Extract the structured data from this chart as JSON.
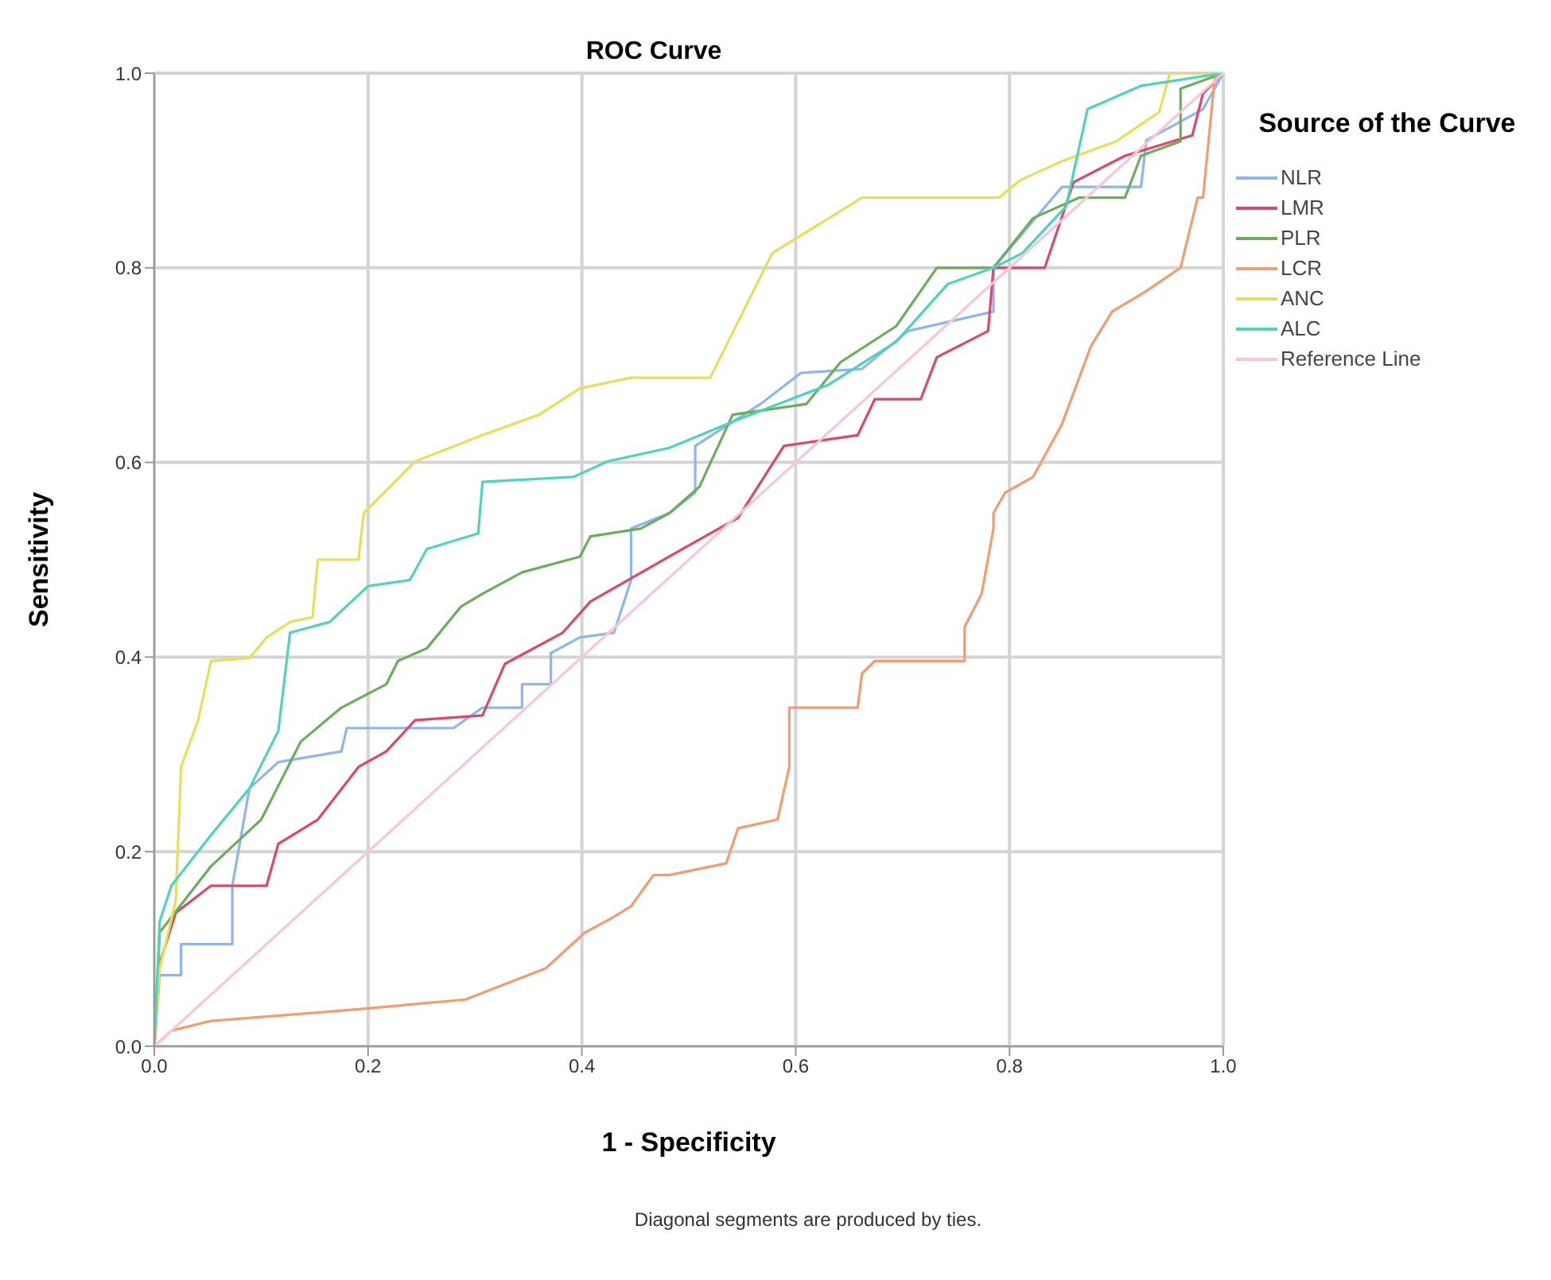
{
  "chart_data": {
    "type": "line",
    "title": "ROC Curve",
    "xlabel": "1 - Specificity",
    "ylabel": "Sensitivity",
    "legend_title": "Source of the Curve",
    "legend": "right",
    "grid": true,
    "marker": "none",
    "line_style": "solid",
    "xlim": [
      0,
      1
    ],
    "ylim": [
      0,
      1
    ],
    "xticks": [
      {
        "value": 0,
        "label": "0.0"
      },
      0.2,
      0.4,
      0.6,
      0.8,
      {
        "value": 1,
        "label": "1.0"
      }
    ],
    "yticks": [
      {
        "value": 0,
        "label": "0.0"
      },
      0.2,
      0.4,
      0.6,
      0.8,
      {
        "value": 1,
        "label": "1.0"
      }
    ],
    "annotations": [
      "Diagonal segments are produced by ties."
    ],
    "series": [
      {
        "name": "NLR",
        "color": "#8db6ee",
        "x": [
          0,
          0.005,
          0.025,
          0.025,
          0.073,
          0.073,
          0.089,
          0.116,
          0.175,
          0.18,
          0.28,
          0.307,
          0.344,
          0.344,
          0.371,
          0.371,
          0.398,
          0.43,
          0.446,
          0.446,
          0.482,
          0.506,
          0.506,
          0.567,
          0.605,
          0.662,
          0.705,
          0.785,
          0.785,
          0.849,
          0.923,
          0.928,
          0.981,
          1
        ],
        "values": [
          0,
          0.073,
          0.073,
          0.105,
          0.105,
          0.165,
          0.265,
          0.292,
          0.303,
          0.327,
          0.327,
          0.348,
          0.348,
          0.372,
          0.372,
          0.404,
          0.42,
          0.425,
          0.479,
          0.532,
          0.548,
          0.569,
          0.617,
          0.66,
          0.692,
          0.696,
          0.735,
          0.755,
          0.8,
          0.883,
          0.883,
          0.931,
          0.963,
          1
        ]
      },
      {
        "name": "LMR",
        "color": "#e0456a",
        "x": [
          0,
          0.005,
          0.02,
          0.053,
          0.105,
          0.116,
          0.153,
          0.191,
          0.217,
          0.244,
          0.307,
          0.328,
          0.382,
          0.408,
          0.494,
          0.546,
          0.589,
          0.658,
          0.674,
          0.717,
          0.732,
          0.78,
          0.785,
          0.833,
          0.86,
          0.908,
          0.971,
          0.981,
          1
        ],
        "values": [
          0,
          0.085,
          0.137,
          0.165,
          0.165,
          0.208,
          0.233,
          0.287,
          0.303,
          0.335,
          0.34,
          0.393,
          0.425,
          0.457,
          0.511,
          0.543,
          0.617,
          0.628,
          0.665,
          0.665,
          0.708,
          0.735,
          0.8,
          0.8,
          0.888,
          0.915,
          0.936,
          0.979,
          1
        ]
      },
      {
        "name": "PLR",
        "color": "#6aae5a",
        "x": [
          0,
          0.005,
          0.053,
          0.1,
          0.137,
          0.175,
          0.217,
          0.228,
          0.255,
          0.287,
          0.307,
          0.344,
          0.398,
          0.408,
          0.455,
          0.482,
          0.51,
          0.541,
          0.61,
          0.642,
          0.694,
          0.732,
          0.785,
          0.822,
          0.865,
          0.908,
          0.923,
          0.96,
          0.96,
          1
        ],
        "values": [
          0,
          0.117,
          0.185,
          0.233,
          0.313,
          0.348,
          0.372,
          0.396,
          0.409,
          0.452,
          0.465,
          0.487,
          0.503,
          0.524,
          0.532,
          0.548,
          0.575,
          0.649,
          0.66,
          0.703,
          0.74,
          0.8,
          0.8,
          0.851,
          0.872,
          0.872,
          0.915,
          0.93,
          0.984,
          1
        ]
      },
      {
        "name": "LCR",
        "color": "#f79a6e",
        "x": [
          0,
          0.016,
          0.053,
          0.18,
          0.291,
          0.366,
          0.382,
          0.403,
          0.43,
          0.446,
          0.467,
          0.482,
          0.535,
          0.546,
          0.583,
          0.594,
          0.594,
          0.658,
          0.662,
          0.674,
          0.758,
          0.758,
          0.774,
          0.785,
          0.785,
          0.796,
          0.822,
          0.833,
          0.849,
          0.876,
          0.896,
          0.928,
          0.96,
          0.976,
          0.981,
          0.992,
          1
        ],
        "values": [
          0,
          0.016,
          0.026,
          0.037,
          0.048,
          0.08,
          0.096,
          0.117,
          0.133,
          0.144,
          0.176,
          0.176,
          0.188,
          0.224,
          0.233,
          0.287,
          0.348,
          0.348,
          0.383,
          0.396,
          0.396,
          0.431,
          0.465,
          0.532,
          0.548,
          0.569,
          0.585,
          0.607,
          0.639,
          0.719,
          0.755,
          0.776,
          0.8,
          0.872,
          0.872,
          0.995,
          1
        ]
      },
      {
        "name": "ANC",
        "color": "#e8df58",
        "x": [
          0,
          0.005,
          0.02,
          0.025,
          0.041,
          0.053,
          0.089,
          0.105,
          0.127,
          0.148,
          0.153,
          0.191,
          0.196,
          0.244,
          0.307,
          0.36,
          0.398,
          0.446,
          0.52,
          0.578,
          0.662,
          0.79,
          0.81,
          0.85,
          0.9,
          0.94,
          0.95,
          1
        ],
        "values": [
          0,
          0.08,
          0.149,
          0.287,
          0.335,
          0.396,
          0.399,
          0.42,
          0.436,
          0.441,
          0.5,
          0.5,
          0.548,
          0.601,
          0.628,
          0.649,
          0.676,
          0.687,
          0.687,
          0.815,
          0.872,
          0.872,
          0.89,
          0.91,
          0.93,
          0.96,
          1,
          1
        ]
      },
      {
        "name": "ALC",
        "color": "#4fd3bf",
        "x": [
          0,
          0.005,
          0.016,
          0.053,
          0.089,
          0.116,
          0.127,
          0.164,
          0.2,
          0.239,
          0.255,
          0.303,
          0.307,
          0.392,
          0.424,
          0.482,
          0.546,
          0.631,
          0.694,
          0.742,
          0.785,
          0.812,
          0.853,
          0.873,
          0.923,
          1
        ],
        "values": [
          0,
          0.128,
          0.165,
          0.217,
          0.265,
          0.324,
          0.425,
          0.436,
          0.473,
          0.479,
          0.511,
          0.527,
          0.58,
          0.585,
          0.601,
          0.615,
          0.644,
          0.68,
          0.724,
          0.783,
          0.8,
          0.815,
          0.863,
          0.963,
          0.987,
          1
        ]
      },
      {
        "name": "Reference Line",
        "color": "#f9c6d6",
        "x": [
          0,
          1
        ],
        "values": [
          0,
          1
        ]
      }
    ]
  }
}
